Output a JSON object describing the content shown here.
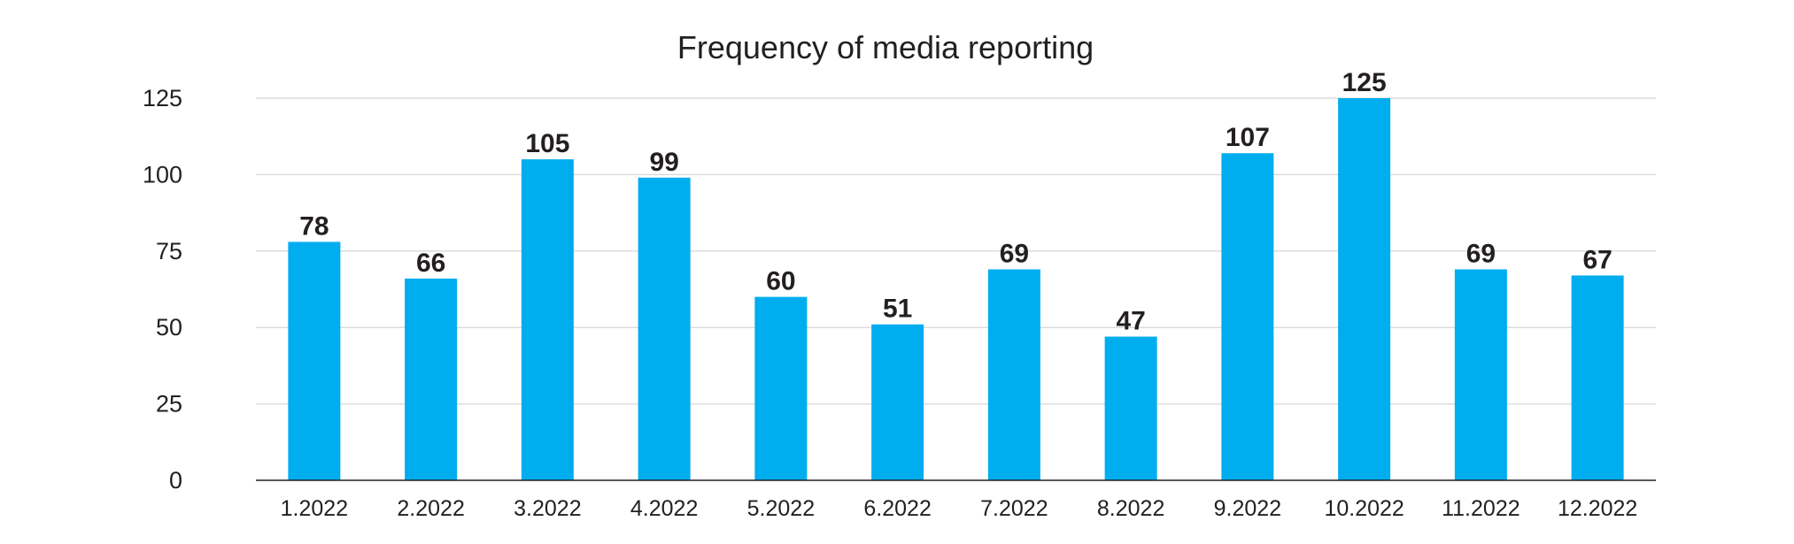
{
  "chart_data": {
    "type": "bar",
    "title": "Frequency of media reporting",
    "xlabel": "",
    "ylabel": "",
    "categories": [
      "1.2022",
      "2.2022",
      "3.2022",
      "4.2022",
      "5.2022",
      "6.2022",
      "7.2022",
      "8.2022",
      "9.2022",
      "10.2022",
      "11.2022",
      "12.2022"
    ],
    "values": [
      78,
      66,
      105,
      99,
      60,
      51,
      69,
      47,
      107,
      125,
      69,
      67
    ],
    "ylim": [
      0,
      125
    ],
    "yticks": [
      "0",
      "25",
      "50",
      "75",
      "100",
      "125"
    ],
    "grid": true,
    "legend": "none",
    "bar_color": "#00adef"
  }
}
